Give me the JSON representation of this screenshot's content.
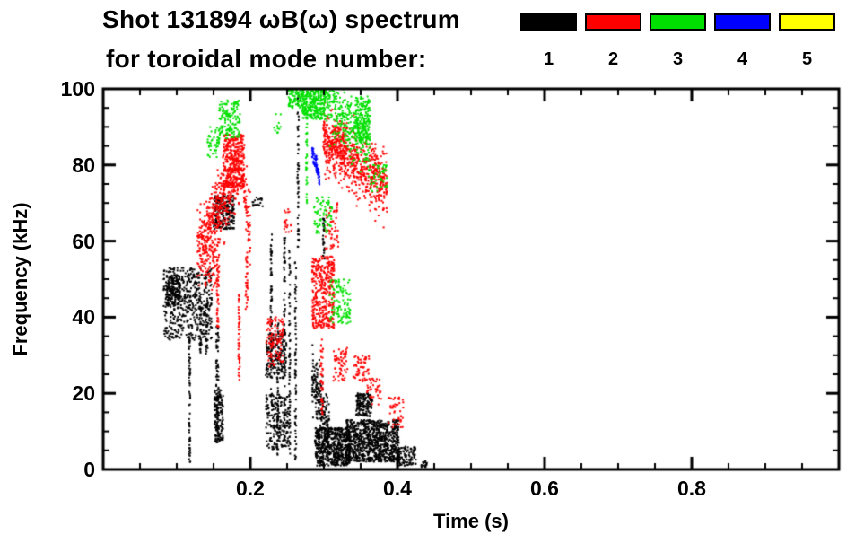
{
  "chart_data": {
    "type": "scatter",
    "title": "Shot 131894 ωB(ω) spectrum",
    "subtitle": "for toroidal mode number:",
    "xlabel": "Time (s)",
    "ylabel": "Frequency (kHz)",
    "xlim": [
      0.0,
      1.0
    ],
    "ylim": [
      0,
      100
    ],
    "xticks": [
      0.2,
      0.4,
      0.6,
      0.8
    ],
    "xtick_labels": [
      "0.2",
      "0.4",
      "0.6",
      "0.8"
    ],
    "xminor_step": 0.05,
    "yticks": [
      0,
      20,
      40,
      60,
      80,
      100
    ],
    "ytick_labels": [
      "0",
      "20",
      "40",
      "60",
      "80",
      "100"
    ],
    "yminor_step": 5,
    "grid": false,
    "background": "#ffffff",
    "axis_color": "#000000",
    "legend_position": "top-right",
    "legend": [
      {
        "mode": "1",
        "color": "#000000"
      },
      {
        "mode": "2",
        "color": "#ff0000"
      },
      {
        "mode": "3",
        "color": "#00e000"
      },
      {
        "mode": "4",
        "color": "#0000ff"
      },
      {
        "mode": "5",
        "color": "#ffff00"
      }
    ],
    "series": [
      {
        "name": "n=1",
        "color": "#000000",
        "clusters": [
          {
            "kind": "blob",
            "t": [
              0.082,
              0.148
            ],
            "f": [
              34,
              53
            ],
            "n": 500
          },
          {
            "kind": "blob",
            "t": [
              0.085,
              0.105
            ],
            "f": [
              43,
              51
            ],
            "n": 150
          },
          {
            "kind": "vline",
            "t": [
              0.131,
              0.134
            ],
            "f": [
              30,
              46
            ],
            "n": 35
          },
          {
            "kind": "vline",
            "t": [
              0.139,
              0.142
            ],
            "f": [
              30,
              44
            ],
            "n": 30
          },
          {
            "kind": "vline",
            "t": [
              0.1165,
              0.1185
            ],
            "f": [
              1,
              36
            ],
            "n": 70
          },
          {
            "kind": "blob",
            "t": [
              0.15,
              0.178
            ],
            "f": [
              63,
              72
            ],
            "n": 220
          },
          {
            "kind": "vline",
            "t": [
              0.1535,
              0.157
            ],
            "f": [
              7,
              38
            ],
            "n": 80
          },
          {
            "kind": "blob",
            "t": [
              0.151,
              0.163
            ],
            "f": [
              7,
              21
            ],
            "n": 150
          },
          {
            "kind": "blob",
            "t": [
              0.203,
              0.217
            ],
            "f": [
              69,
              71.5
            ],
            "n": 18
          },
          {
            "kind": "blob",
            "t": [
              0.221,
              0.249
            ],
            "f": [
              24,
              36
            ],
            "n": 170
          },
          {
            "kind": "blob",
            "t": [
              0.221,
              0.252
            ],
            "f": [
              5,
              20
            ],
            "n": 200
          },
          {
            "kind": "vline",
            "t": [
              0.2275,
              0.2295
            ],
            "f": [
              18,
              62
            ],
            "n": 70
          },
          {
            "kind": "vline",
            "t": [
              0.2365,
              0.2385
            ],
            "f": [
              2,
              40
            ],
            "n": 55
          },
          {
            "kind": "vline",
            "t": [
              0.2455,
              0.2475
            ],
            "f": [
              2,
              61
            ],
            "n": 85
          },
          {
            "kind": "vline",
            "t": [
              0.2525,
              0.2545
            ],
            "f": [
              3,
              58
            ],
            "n": 75
          },
          {
            "kind": "vline",
            "t": [
              0.2605,
              0.2625
            ],
            "f": [
              2,
              55
            ],
            "n": 70
          },
          {
            "kind": "vline",
            "t": [
              0.264,
              0.266
            ],
            "f": [
              58,
              100
            ],
            "n": 60
          },
          {
            "kind": "ridge",
            "t": [
              0.284,
              0.308
            ],
            "f": [
              24,
              8
            ],
            "s": 4,
            "n": 220
          },
          {
            "kind": "blob",
            "t": [
              0.288,
              0.335
            ],
            "f": [
              1,
              11
            ],
            "n": 550
          },
          {
            "kind": "blob",
            "t": [
              0.33,
              0.402
            ],
            "f": [
              2,
              13
            ],
            "n": 900
          },
          {
            "kind": "blob",
            "t": [
              0.344,
              0.366
            ],
            "f": [
              14,
              20
            ],
            "n": 140
          },
          {
            "kind": "vline",
            "t": [
              0.2985,
              0.301
            ],
            "f": [
              55,
              66
            ],
            "n": 30
          },
          {
            "kind": "blob",
            "t": [
              0.398,
              0.425
            ],
            "f": [
              1,
              6
            ],
            "n": 110
          },
          {
            "kind": "blob",
            "t": [
              0.432,
              0.44
            ],
            "f": [
              0.5,
              2.5
            ],
            "n": 18
          }
        ]
      },
      {
        "name": "n=2",
        "color": "#ff0000",
        "clusters": [
          {
            "kind": "ridge",
            "t": [
              0.128,
              0.185
            ],
            "f": [
              57,
              80
            ],
            "s": 4.5,
            "n": 500
          },
          {
            "kind": "blob",
            "t": [
              0.163,
              0.192
            ],
            "f": [
              74,
              88
            ],
            "n": 260
          },
          {
            "kind": "blob",
            "t": [
              0.138,
              0.158
            ],
            "f": [
              47,
              60
            ],
            "n": 70
          },
          {
            "kind": "vline",
            "t": [
              0.1545,
              0.157
            ],
            "f": [
              37,
              55
            ],
            "n": 40
          },
          {
            "kind": "ridge",
            "t": [
              0.186,
              0.2
            ],
            "f": [
              82,
              62
            ],
            "s": 4,
            "n": 80
          },
          {
            "kind": "vline",
            "t": [
              0.1835,
              0.186
            ],
            "f": [
              22,
              46
            ],
            "n": 45
          },
          {
            "kind": "vline",
            "t": [
              0.1935,
              0.1965
            ],
            "f": [
              42,
              58
            ],
            "n": 35
          },
          {
            "kind": "blob",
            "t": [
              0.221,
              0.245
            ],
            "f": [
              27,
              40
            ],
            "n": 110
          },
          {
            "kind": "blob",
            "t": [
              0.246,
              0.256
            ],
            "f": [
              62,
              69
            ],
            "n": 20
          },
          {
            "kind": "blob",
            "t": [
              0.284,
              0.314
            ],
            "f": [
              37,
              56
            ],
            "n": 380
          },
          {
            "kind": "vline",
            "t": [
              0.2955,
              0.299
            ],
            "f": [
              14,
              35
            ],
            "n": 45
          },
          {
            "kind": "ridge",
            "t": [
              0.299,
              0.386
            ],
            "f": [
              86,
              75
            ],
            "s": 4,
            "n": 650
          },
          {
            "kind": "blob",
            "t": [
              0.3,
              0.332
            ],
            "f": [
              82,
              91
            ],
            "n": 120
          },
          {
            "kind": "blob",
            "t": [
              0.313,
              0.332
            ],
            "f": [
              23,
              32
            ],
            "n": 60
          },
          {
            "kind": "blob",
            "t": [
              0.34,
              0.362
            ],
            "f": [
              23,
              30
            ],
            "n": 60
          },
          {
            "kind": "blob",
            "t": [
              0.358,
              0.378
            ],
            "f": [
              17,
              24
            ],
            "n": 40
          },
          {
            "kind": "blob",
            "t": [
              0.302,
              0.32
            ],
            "f": [
              58,
              70
            ],
            "n": 50
          },
          {
            "kind": "blob",
            "t": [
              0.388,
              0.408
            ],
            "f": [
              11,
              19
            ],
            "n": 45
          }
        ]
      },
      {
        "name": "n=3",
        "color": "#00e000",
        "clusters": [
          {
            "kind": "blob",
            "t": [
              0.142,
              0.158
            ],
            "f": [
              82,
              90
            ],
            "n": 45
          },
          {
            "kind": "blob",
            "t": [
              0.157,
              0.186
            ],
            "f": [
              87,
              97
            ],
            "n": 150
          },
          {
            "kind": "blob",
            "t": [
              0.232,
              0.242
            ],
            "f": [
              88,
              94
            ],
            "n": 12
          },
          {
            "kind": "blob",
            "t": [
              0.252,
              0.272
            ],
            "f": [
              95,
              100
            ],
            "n": 80
          },
          {
            "kind": "vline",
            "t": [
              0.2755,
              0.2775
            ],
            "f": [
              70,
              100
            ],
            "n": 45
          },
          {
            "kind": "blob",
            "t": [
              0.27,
              0.302
            ],
            "f": [
              92,
              100
            ],
            "n": 280
          },
          {
            "kind": "ridge",
            "t": [
              0.3,
              0.362
            ],
            "f": [
              98,
              86
            ],
            "s": 4,
            "n": 300
          },
          {
            "kind": "blob",
            "t": [
              0.343,
              0.363
            ],
            "f": [
              86,
              98
            ],
            "n": 180
          },
          {
            "kind": "blob",
            "t": [
              0.286,
              0.312
            ],
            "f": [
              62,
              72
            ],
            "n": 70
          },
          {
            "kind": "blob",
            "t": [
              0.308,
              0.336
            ],
            "f": [
              38,
              50
            ],
            "n": 110
          },
          {
            "kind": "blob",
            "t": [
              0.358,
              0.386
            ],
            "f": [
              73,
              80
            ],
            "n": 50
          }
        ]
      },
      {
        "name": "n=4",
        "color": "#0000ff",
        "clusters": [
          {
            "kind": "ridge",
            "t": [
              0.284,
              0.2945
            ],
            "f": [
              84,
              76
            ],
            "s": 1.2,
            "n": 60
          }
        ]
      },
      {
        "name": "n=5",
        "color": "#ffff00",
        "clusters": []
      }
    ]
  }
}
